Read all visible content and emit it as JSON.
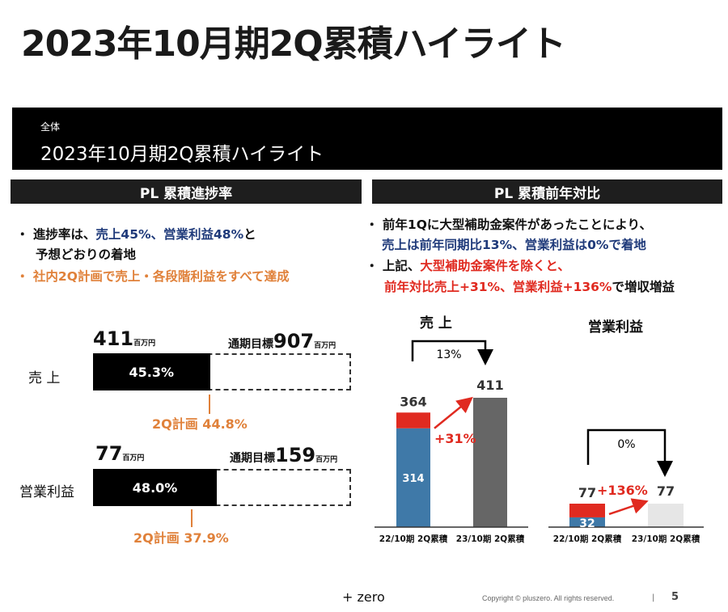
{
  "title": "2023年10月期2Q累積ハイライト",
  "banner": {
    "label": "全体",
    "title": "2023年10月期2Q累積ハイライト"
  },
  "sections": {
    "left": "PL 累積進捗率",
    "right": "PL 累積前年対比"
  },
  "left_bullets": {
    "b1_a": "進捗率は、",
    "b1_b": "売上45%、営業利益48%",
    "b1_c": "と",
    "b1_d": "予想どおりの着地",
    "b2": "社内2Q計画で売上・各段階利益をすべて達成"
  },
  "right_bullets": {
    "b1_a": "前年1Qに大型補助金案件があったことにより、",
    "b1_b": "売上は前年同期比13%、営業利益は0%で着地",
    "b2_a": "上記、",
    "b2_b": "大型補助金案件を除くと、",
    "b2_c": "前年対比売上+31%、営業利益+136%",
    "b2_d": "で増収増益"
  },
  "progress": [
    {
      "label": "売 上",
      "actual": "411",
      "unit": "百万円",
      "target_label": "通期目標",
      "target": "907",
      "percent_text": "45.3%",
      "percent": 45.3,
      "plan": "2Q計画 44.8%",
      "plan_percent": 44.8
    },
    {
      "label": "営業利益",
      "actual": "77",
      "unit": "百万円",
      "target_label": "通期目標",
      "target": "159",
      "percent_text": "48.0%",
      "percent": 48.0,
      "plan": "2Q計画 37.9%",
      "plan_percent": 37.9
    }
  ],
  "chart_data": [
    {
      "type": "bar",
      "title": "売 上",
      "categories": [
        "22/10期 2Q累積",
        "23/10期 2Q累積"
      ],
      "series": [
        {
          "values": [
            314,
            411
          ]
        },
        {
          "values": [
            50,
            0
          ]
        }
      ],
      "totals": [
        "364",
        "411"
      ],
      "base_label": "314",
      "yoy": "13%",
      "yoy_ex": "+31%",
      "colors": {
        "base": "#3f79a8",
        "subsidy": "#e02a20",
        "current": "#666666"
      }
    },
    {
      "type": "bar",
      "title": "営業利益",
      "categories": [
        "22/10期 2Q累積",
        "23/10期 2Q累積"
      ],
      "series": [
        {
          "values": [
            32,
            77
          ]
        },
        {
          "values": [
            45,
            0
          ]
        }
      ],
      "totals": [
        "77",
        "77"
      ],
      "base_label": "32",
      "yoy": "0%",
      "yoy_ex": "+136%",
      "colors": {
        "base": "#3f79a8",
        "subsidy": "#e02a20",
        "current": "#e6e6e6"
      }
    }
  ],
  "footer": {
    "logo": "+ zero",
    "copyright": "Copyright © pluszero. All rights reserved.",
    "sep": "|",
    "page": "5"
  }
}
